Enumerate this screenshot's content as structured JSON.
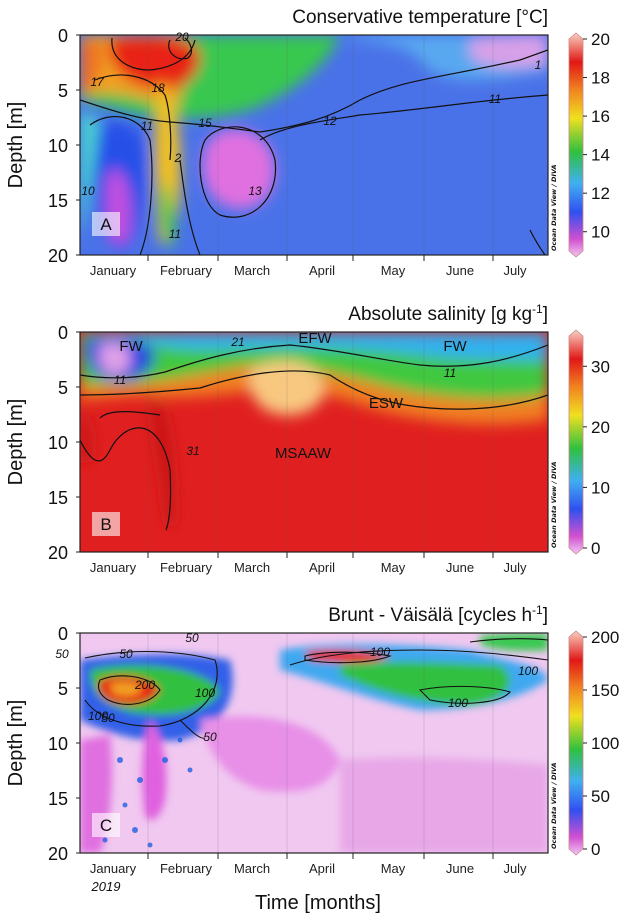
{
  "chart_data": [
    {
      "type": "heatmap",
      "panel_label": "A",
      "title": "Conservative temperature [°C]",
      "ylabel": "Depth [m]",
      "ylim": [
        20,
        0
      ],
      "yticks": [
        "0",
        "5",
        "10",
        "15",
        "20"
      ],
      "xticks": [
        "January",
        "February",
        "March",
        "April",
        "May",
        "June",
        "July"
      ],
      "colorbar": {
        "min": 9,
        "max": 20,
        "ticks": [
          "10",
          "12",
          "14",
          "16",
          "18",
          "20"
        ]
      },
      "contour_labels": [
        "20",
        "17",
        "18",
        "1",
        "11",
        "12",
        "11",
        "15",
        "2",
        "10",
        "13",
        "11"
      ],
      "watermark": "Ocean Data View / DIVA"
    },
    {
      "type": "heatmap",
      "panel_label": "B",
      "title": "Absolute salinity [g kg",
      "title_sup": "-1",
      "title_end": "]",
      "ylabel": "Depth [m]",
      "ylim": [
        20,
        0
      ],
      "yticks": [
        "0",
        "5",
        "10",
        "15",
        "20"
      ],
      "xticks": [
        "January",
        "February",
        "March",
        "April",
        "May",
        "June",
        "July"
      ],
      "colorbar": {
        "min": 0,
        "max": 35,
        "ticks": [
          "0",
          "10",
          "20",
          "30"
        ]
      },
      "contour_labels": [
        "21",
        "11",
        "11",
        "31"
      ],
      "water_masses": [
        "FW",
        "EFW",
        "FW",
        "ESW",
        "MSAAW"
      ],
      "watermark": "Ocean Data View / DIVA"
    },
    {
      "type": "heatmap",
      "panel_label": "C",
      "title": "Brunt - Väisälä [cycles h",
      "title_sup": "-1",
      "title_end": "]",
      "ylabel": "Depth [m]",
      "ylim": [
        20,
        0
      ],
      "yticks": [
        "0",
        "5",
        "10",
        "15",
        "20"
      ],
      "xticks": [
        "January",
        "February",
        "March",
        "April",
        "May",
        "June",
        "July"
      ],
      "year": "2019",
      "xlabel": "Time [months]",
      "colorbar": {
        "min": 0,
        "max": 200,
        "ticks": [
          "0",
          "50",
          "100",
          "150",
          "200"
        ]
      },
      "contour_labels": [
        "50",
        "50",
        "50",
        "200",
        "100",
        "50",
        "50",
        "100",
        "100",
        "100",
        "100"
      ],
      "watermark": "Ocean Data View / DIVA"
    }
  ],
  "colors": {
    "odv_low": "#e060e0",
    "odv_blue": "#2050f0",
    "odv_green": "#30c030",
    "odv_yellow": "#f0c020",
    "odv_red": "#e01818"
  }
}
